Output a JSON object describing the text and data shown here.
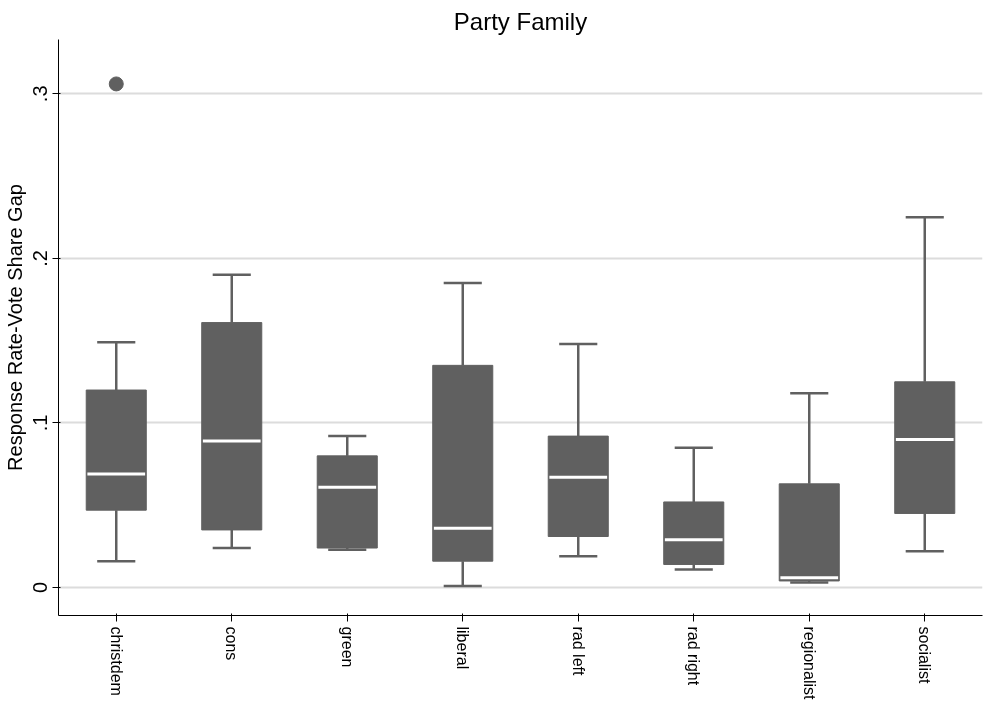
{
  "chart_data": {
    "type": "box",
    "title": "Party Family",
    "ylabel": "Response Rate-Vote Share Gap",
    "categories": [
      "christdem",
      "cons",
      "green",
      "liberal",
      "rad left",
      "rad right",
      "regionalist",
      "socialist"
    ],
    "color": "#606060",
    "boxes": [
      {
        "low": 0.016,
        "q1": 0.047,
        "median": 0.069,
        "q3": 0.12,
        "high": 0.149,
        "outliers": [
          0.306
        ]
      },
      {
        "low": 0.024,
        "q1": 0.035,
        "median": 0.089,
        "q3": 0.161,
        "high": 0.19
      },
      {
        "low": 0.023,
        "q1": 0.024,
        "median": 0.061,
        "q3": 0.08,
        "high": 0.092
      },
      {
        "low": 0.001,
        "q1": 0.016,
        "median": 0.036,
        "q3": 0.135,
        "high": 0.185
      },
      {
        "low": 0.019,
        "q1": 0.031,
        "median": 0.067,
        "q3": 0.092,
        "high": 0.148
      },
      {
        "low": 0.011,
        "q1": 0.014,
        "median": 0.029,
        "q3": 0.052,
        "high": 0.085
      },
      {
        "low": 0.003,
        "q1": 0.004,
        "median": 0.006,
        "q3": 0.063,
        "high": 0.118
      },
      {
        "low": 0.022,
        "q1": 0.045,
        "median": 0.09,
        "q3": 0.125,
        "high": 0.225
      }
    ],
    "ylim": [
      -0.017,
      0.333
    ],
    "yticks": [
      {
        "value": 0,
        "label": "0"
      },
      {
        "value": 0.1,
        "label": ".1"
      },
      {
        "value": 0.2,
        "label": ".2"
      },
      {
        "value": 0.3,
        "label": ".3"
      }
    ],
    "grid": "y"
  }
}
